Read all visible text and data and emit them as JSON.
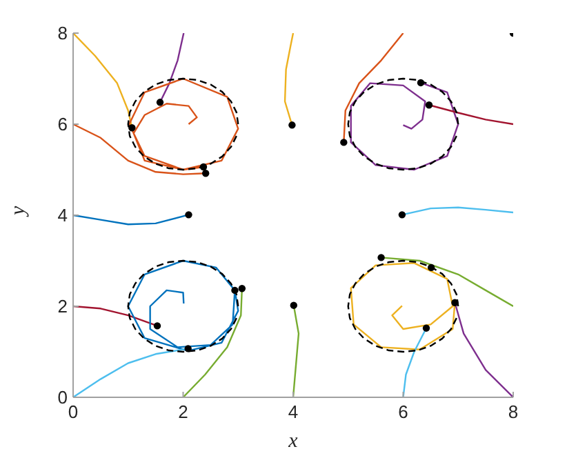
{
  "chart_data": {
    "type": "line",
    "xlabel": "x",
    "ylabel": "y",
    "xlim": [
      0,
      8
    ],
    "ylim": [
      0,
      8
    ],
    "xticks": [
      0,
      2,
      4,
      6,
      8
    ],
    "yticks": [
      0,
      2,
      4,
      6,
      8
    ],
    "grid": false,
    "marker": "none",
    "line_style": "solid",
    "series": [
      {
        "color": "#edb120",
        "x": [
          0,
          0.4,
          0.8,
          1.0,
          1.07
        ],
        "values": [
          8,
          7.5,
          6.9,
          6.3,
          5.92
        ]
      },
      {
        "color": "#7e2f8e",
        "x": [
          1.58,
          1.75,
          1.9,
          2.01
        ],
        "values": [
          6.48,
          6.9,
          7.4,
          8
        ]
      },
      {
        "color": "#d95319",
        "x": [
          0,
          0.5,
          1.0,
          1.5,
          2.0,
          2.41
        ],
        "values": [
          6,
          5.7,
          5.2,
          4.95,
          4.9,
          4.92
        ]
      },
      {
        "color": "#d95319",
        "x": [
          2.1,
          2.25,
          2.1,
          1.7,
          1.3,
          1.1,
          1.3,
          2.0,
          2.7,
          3.0,
          2.8,
          2.0,
          1.3,
          1.02,
          1.3,
          2.0,
          2.37
        ],
        "values": [
          6.0,
          6.15,
          6.4,
          6.45,
          6.2,
          5.8,
          5.2,
          5.0,
          5.2,
          5.9,
          6.6,
          7.0,
          6.7,
          6.0,
          5.3,
          5.0,
          5.06
        ]
      },
      {
        "color": "#edb120",
        "x": [
          3.98,
          3.85,
          3.87,
          3.95,
          4.0
        ],
        "values": [
          5.98,
          6.5,
          7.2,
          7.7,
          8
        ]
      },
      {
        "color": "#d95319",
        "x": [
          4.92,
          4.95,
          5.2,
          5.6,
          6.0
        ],
        "values": [
          5.6,
          6.3,
          6.9,
          7.4,
          8
        ]
      },
      {
        "color": "#7e2f8e",
        "x": [
          6.0,
          6.15,
          6.35,
          6.4,
          6.0,
          5.4,
          5.05,
          5.05,
          5.5,
          6.2,
          6.8,
          7.0,
          6.8,
          6.32
        ],
        "values": [
          5.98,
          5.9,
          6.1,
          6.5,
          6.85,
          6.9,
          6.4,
          5.6,
          5.1,
          5.0,
          5.3,
          6.0,
          6.7,
          6.91
        ]
      },
      {
        "color": "#a2142f",
        "x": [
          8,
          7.5,
          7.0,
          6.47
        ],
        "values": [
          6,
          6.1,
          6.25,
          6.42
        ]
      },
      {
        "color": "#0072bd",
        "x": [
          0,
          0.5,
          1.0,
          1.5,
          2.1
        ],
        "values": [
          4,
          3.9,
          3.8,
          3.82,
          4.01
        ]
      },
      {
        "color": "#a2142f",
        "x": [
          0,
          0.5,
          1.0,
          1.53
        ],
        "values": [
          2,
          1.95,
          1.8,
          1.57
        ]
      },
      {
        "color": "#0072bd",
        "x": [
          2.01,
          2.0,
          1.7,
          1.4,
          1.4,
          1.9,
          2.5,
          2.9,
          2.94,
          2.6,
          2.0,
          1.3,
          1.0,
          1.3,
          2.09,
          2.7,
          3.0,
          2.94
        ],
        "values": [
          2.06,
          2.3,
          2.35,
          2.0,
          1.5,
          1.1,
          1.15,
          1.6,
          2.35,
          2.85,
          3.0,
          2.7,
          2.0,
          1.3,
          1.02,
          1.2,
          1.9,
          2.35
        ]
      },
      {
        "color": "#4dbeee",
        "x": [
          0,
          0.5,
          1.0,
          1.5,
          2.09
        ],
        "values": [
          0,
          0.4,
          0.75,
          0.95,
          1.07
        ]
      },
      {
        "color": "#77ac30",
        "x": [
          2,
          2.4,
          2.8,
          3.05,
          3.07
        ],
        "values": [
          0,
          0.5,
          1.1,
          1.8,
          2.39
        ]
      },
      {
        "color": "#77ac30",
        "x": [
          4,
          4.05,
          4.1,
          4.01
        ],
        "values": [
          0,
          0.7,
          1.4,
          2.02
        ]
      },
      {
        "color": "#4dbeee",
        "x": [
          5.98,
          6.5,
          7.0,
          7.5,
          8
        ],
        "values": [
          4.01,
          4.15,
          4.17,
          4.12,
          4.06
        ]
      },
      {
        "color": "#77ac30",
        "x": [
          5.6,
          6.3,
          7.0,
          7.5,
          8
        ],
        "values": [
          3.07,
          3.0,
          2.7,
          2.35,
          2.0
        ]
      },
      {
        "color": "#edb120",
        "x": [
          5.98,
          5.8,
          6.0,
          6.5,
          6.9,
          6.8,
          6.2,
          5.5,
          5.05,
          5.1,
          5.6,
          6.3,
          6.9,
          6.94
        ],
        "values": [
          2.01,
          1.8,
          1.5,
          1.6,
          2.0,
          2.6,
          2.95,
          2.9,
          2.4,
          1.6,
          1.1,
          1.05,
          1.5,
          2.08
        ]
      },
      {
        "color": "#4dbeee",
        "x": [
          6,
          6.05,
          6.2,
          6.42
        ],
        "values": [
          0,
          0.5,
          1.0,
          1.52
        ]
      },
      {
        "color": "#7e2f8e",
        "x": [
          8,
          7.5,
          7.1,
          6.94
        ],
        "values": [
          0,
          0.6,
          1.4,
          2.08
        ]
      },
      {
        "color": "#000000",
        "line_style": "dashed",
        "x": [
          3,
          2.97,
          2.87,
          2.71,
          2.5,
          2.26,
          2,
          1.74,
          1.5,
          1.29,
          1.13,
          1.03,
          1,
          1.03,
          1.13,
          1.29,
          1.5,
          1.74,
          2,
          2.26,
          2.5,
          2.71,
          2.87,
          2.97
        ],
        "values": [
          6,
          6.26,
          6.5,
          6.71,
          6.87,
          6.97,
          7,
          6.97,
          6.87,
          6.71,
          6.5,
          6.26,
          6,
          5.74,
          5.5,
          5.29,
          5.13,
          5.03,
          5,
          5.03,
          5.13,
          5.29,
          5.5,
          5.74
        ]
      },
      {
        "color": "#000000",
        "line_style": "dashed",
        "x": [
          7,
          6.97,
          6.87,
          6.71,
          6.5,
          6.26,
          6,
          5.74,
          5.5,
          5.29,
          5.13,
          5.03,
          5,
          5.03,
          5.13,
          5.29,
          5.5,
          5.74,
          6,
          6.26,
          6.5,
          6.71,
          6.87,
          6.97
        ],
        "values": [
          6,
          6.26,
          6.5,
          6.71,
          6.87,
          6.97,
          7,
          6.97,
          6.87,
          6.71,
          6.5,
          6.26,
          6,
          5.74,
          5.5,
          5.29,
          5.13,
          5.03,
          5,
          5.03,
          5.13,
          5.29,
          5.5,
          5.74
        ]
      },
      {
        "color": "#000000",
        "line_style": "dashed",
        "x": [
          3,
          2.97,
          2.87,
          2.71,
          2.5,
          2.26,
          2,
          1.74,
          1.5,
          1.29,
          1.13,
          1.03,
          1,
          1.03,
          1.13,
          1.29,
          1.5,
          1.74,
          2,
          2.26,
          2.5,
          2.71,
          2.87,
          2.97
        ],
        "values": [
          2,
          2.26,
          2.5,
          2.71,
          2.87,
          2.97,
          3,
          2.97,
          2.87,
          2.71,
          2.5,
          2.26,
          2,
          1.74,
          1.5,
          1.29,
          1.13,
          1.03,
          1,
          1.03,
          1.13,
          1.29,
          1.5,
          1.74
        ]
      },
      {
        "color": "#000000",
        "line_style": "dashed",
        "x": [
          7,
          6.97,
          6.87,
          6.71,
          6.5,
          6.26,
          6,
          5.74,
          5.5,
          5.29,
          5.13,
          5.03,
          5,
          5.03,
          5.13,
          5.29,
          5.5,
          5.74,
          6,
          6.26,
          6.5,
          6.71,
          6.87,
          6.97
        ],
        "values": [
          2,
          2.26,
          2.5,
          2.71,
          2.87,
          2.97,
          3,
          2.97,
          2.87,
          2.71,
          2.5,
          2.26,
          2,
          1.74,
          1.5,
          1.29,
          1.13,
          1.03,
          1,
          1.03,
          1.13,
          1.29,
          1.5,
          1.74
        ]
      },
      {
        "type": "scatter",
        "color": "#000000",
        "marker": "circle",
        "x": [
          1.58,
          1.07,
          2.37,
          2.41,
          3.98,
          8,
          4.92,
          6.32,
          6.47,
          2.1,
          5.98,
          1.53,
          2.09,
          2.94,
          3.07,
          4.01,
          5.6,
          6.51,
          6.94,
          6.42
        ],
        "values": [
          6.48,
          5.92,
          5.06,
          4.92,
          5.98,
          8,
          5.6,
          6.91,
          6.42,
          4.01,
          4.01,
          1.57,
          1.07,
          2.35,
          2.39,
          2.02,
          3.07,
          2.85,
          2.08,
          1.52
        ]
      }
    ]
  }
}
